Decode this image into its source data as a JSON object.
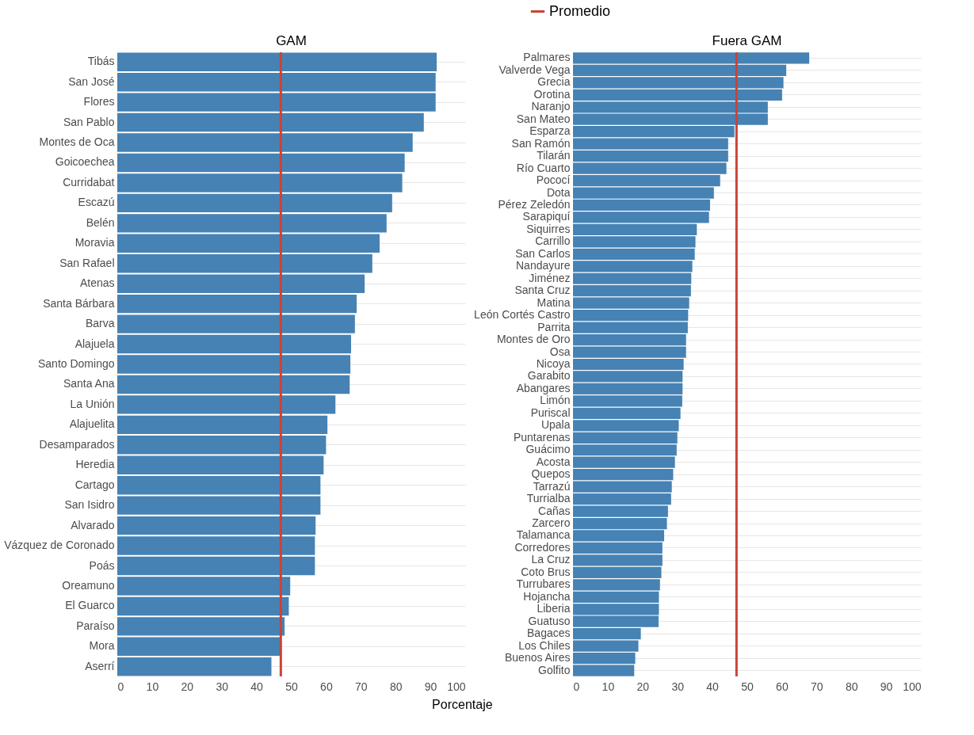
{
  "chart_data": [
    {
      "type": "bar",
      "orientation": "horizontal",
      "title": "GAM",
      "xlabel": "Porcentaje",
      "grid": "y",
      "legend": "top",
      "categories": [
        "Tibás",
        "San José",
        "Flores",
        "San Pablo",
        "Montes de Oca",
        "Goicoechea",
        "Curridabat",
        "Escazú",
        "Belén",
        "Moravia",
        "San Rafael",
        "Atenas",
        "Santa Bárbara",
        "Barva",
        "Alajuela",
        "Santo Domingo",
        "Santa Ana",
        "La Unión",
        "Alajuelita",
        "Desamparados",
        "Heredia",
        "Cartago",
        "San Isidro",
        "Alvarado",
        "Vázquez de Coronado",
        "Poás",
        "Oreamuno",
        "El Guarco",
        "Paraíso",
        "Mora",
        "Aserrí"
      ],
      "series": [
        {
          "color": "#4682b4",
          "values": [
            91.8,
            91.5,
            91.5,
            88.1,
            84.9,
            82.6,
            81.9,
            79.0,
            77.4,
            75.4,
            73.3,
            71.1,
            68.8,
            68.3,
            67.2,
            67.0,
            66.8,
            62.7,
            60.4,
            60.0,
            59.3,
            58.4,
            58.4,
            57.0,
            56.8,
            56.8,
            49.7,
            49.3,
            48.1,
            46.8,
            44.3
          ]
        }
      ],
      "xlim": [
        0,
        100
      ],
      "xticks": [
        0,
        10,
        20,
        30,
        40,
        50,
        60,
        70,
        80,
        90,
        100
      ],
      "ref_lines": [
        {
          "axis": "x",
          "value": 47,
          "label": "Promedio",
          "color": "#cb4335"
        }
      ]
    },
    {
      "type": "bar",
      "orientation": "horizontal",
      "title": "Fuera GAM",
      "grid": "y",
      "categories": [
        "Palmares",
        "Valverde Vega",
        "Grecia",
        "Orotina",
        "Naranjo",
        "San Mateo",
        "Esparza",
        "San Ramón",
        "Tilarán",
        "Río Cuarto",
        "Pococí",
        "Dota",
        "Pérez Zeledón",
        "Sarapiquí",
        "Siquirres",
        "Carrillo",
        "San Carlos",
        "Nandayure",
        "Jiménez",
        "Santa Cruz",
        "Matina",
        "León Cortés Castro",
        "Parrita",
        "Montes de Oro",
        "Osa",
        "Nicoya",
        "Garabito",
        "Abangares",
        "Limón",
        "Puriscal",
        "Upala",
        "Puntarenas",
        "Guácimo",
        "Acosta",
        "Quepos",
        "Tarrazú",
        "Turrialba",
        "Cañas",
        "Zarcero",
        "Talamanca",
        "Corredores",
        "La Cruz",
        "Coto Brus",
        "Turrubares",
        "Hojancha",
        "Liberia",
        "Guatuso",
        "Bagaces",
        "Los Chiles",
        "Buenos Aires",
        "Golfito"
      ],
      "series": [
        {
          "color": "#4682b4",
          "values": [
            67.9,
            61.3,
            60.5,
            60.1,
            56.0,
            56.0,
            46.4,
            44.6,
            44.6,
            44.1,
            42.3,
            40.5,
            39.4,
            39.1,
            35.6,
            35.2,
            35.0,
            34.3,
            34.0,
            33.9,
            33.4,
            33.1,
            33.0,
            32.5,
            32.5,
            31.8,
            31.5,
            31.5,
            31.4,
            30.9,
            30.4,
            30.0,
            29.8,
            29.3,
            28.8,
            28.4,
            28.2,
            27.3,
            27.0,
            26.2,
            25.7,
            25.7,
            25.4,
            25.0,
            24.7,
            24.7,
            24.6,
            19.5,
            18.8,
            17.9,
            17.6
          ]
        }
      ],
      "xlim": [
        0,
        100
      ],
      "xticks": [
        0,
        10,
        20,
        30,
        40,
        50,
        60,
        70,
        80,
        90,
        100
      ],
      "ref_lines": [
        {
          "axis": "x",
          "value": 47,
          "color": "#cb4335"
        }
      ]
    }
  ]
}
